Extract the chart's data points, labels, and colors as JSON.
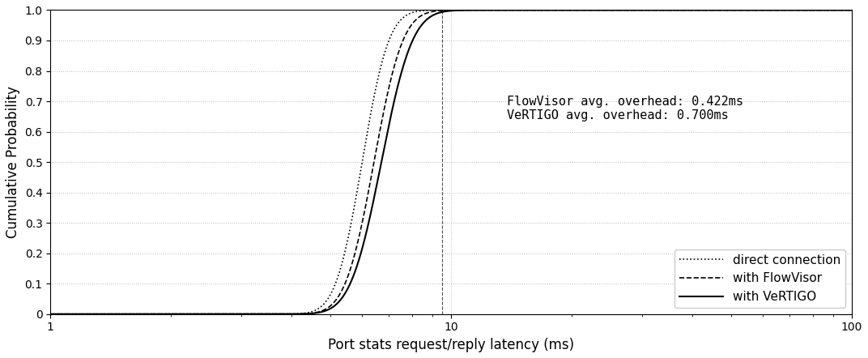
{
  "title": "",
  "xlabel": "Port stats request/reply latency (ms)",
  "ylabel": "Cumulative Probability",
  "xlim": [
    1,
    100
  ],
  "ylim": [
    0,
    1
  ],
  "yticks": [
    0,
    0.1,
    0.2,
    0.3,
    0.4,
    0.5,
    0.6,
    0.7,
    0.8,
    0.9,
    1.0
  ],
  "annotation_line1": "FlowVisor avg. overhead: 0.422ms",
  "annotation_line2": "VeRTIGO avg. overhead: 0.700ms",
  "vline_x": 9.5,
  "legend_labels": [
    "direct connection",
    "with FlowVisor",
    "with VeRTIGO"
  ],
  "legend_linestyles": [
    "dotted",
    "dashed",
    "solid"
  ],
  "line_color": "#000000",
  "grid_color": "#aaaaaa",
  "background_color": "#ffffff",
  "direct_mu": 6.0,
  "direct_sigma": 0.12,
  "flowvisor_mu": 6.422,
  "flowvisor_sigma": 0.13,
  "vertigo_mu": 6.7,
  "vertigo_sigma": 0.14,
  "x_min": 4.0,
  "x_max": 30.0
}
